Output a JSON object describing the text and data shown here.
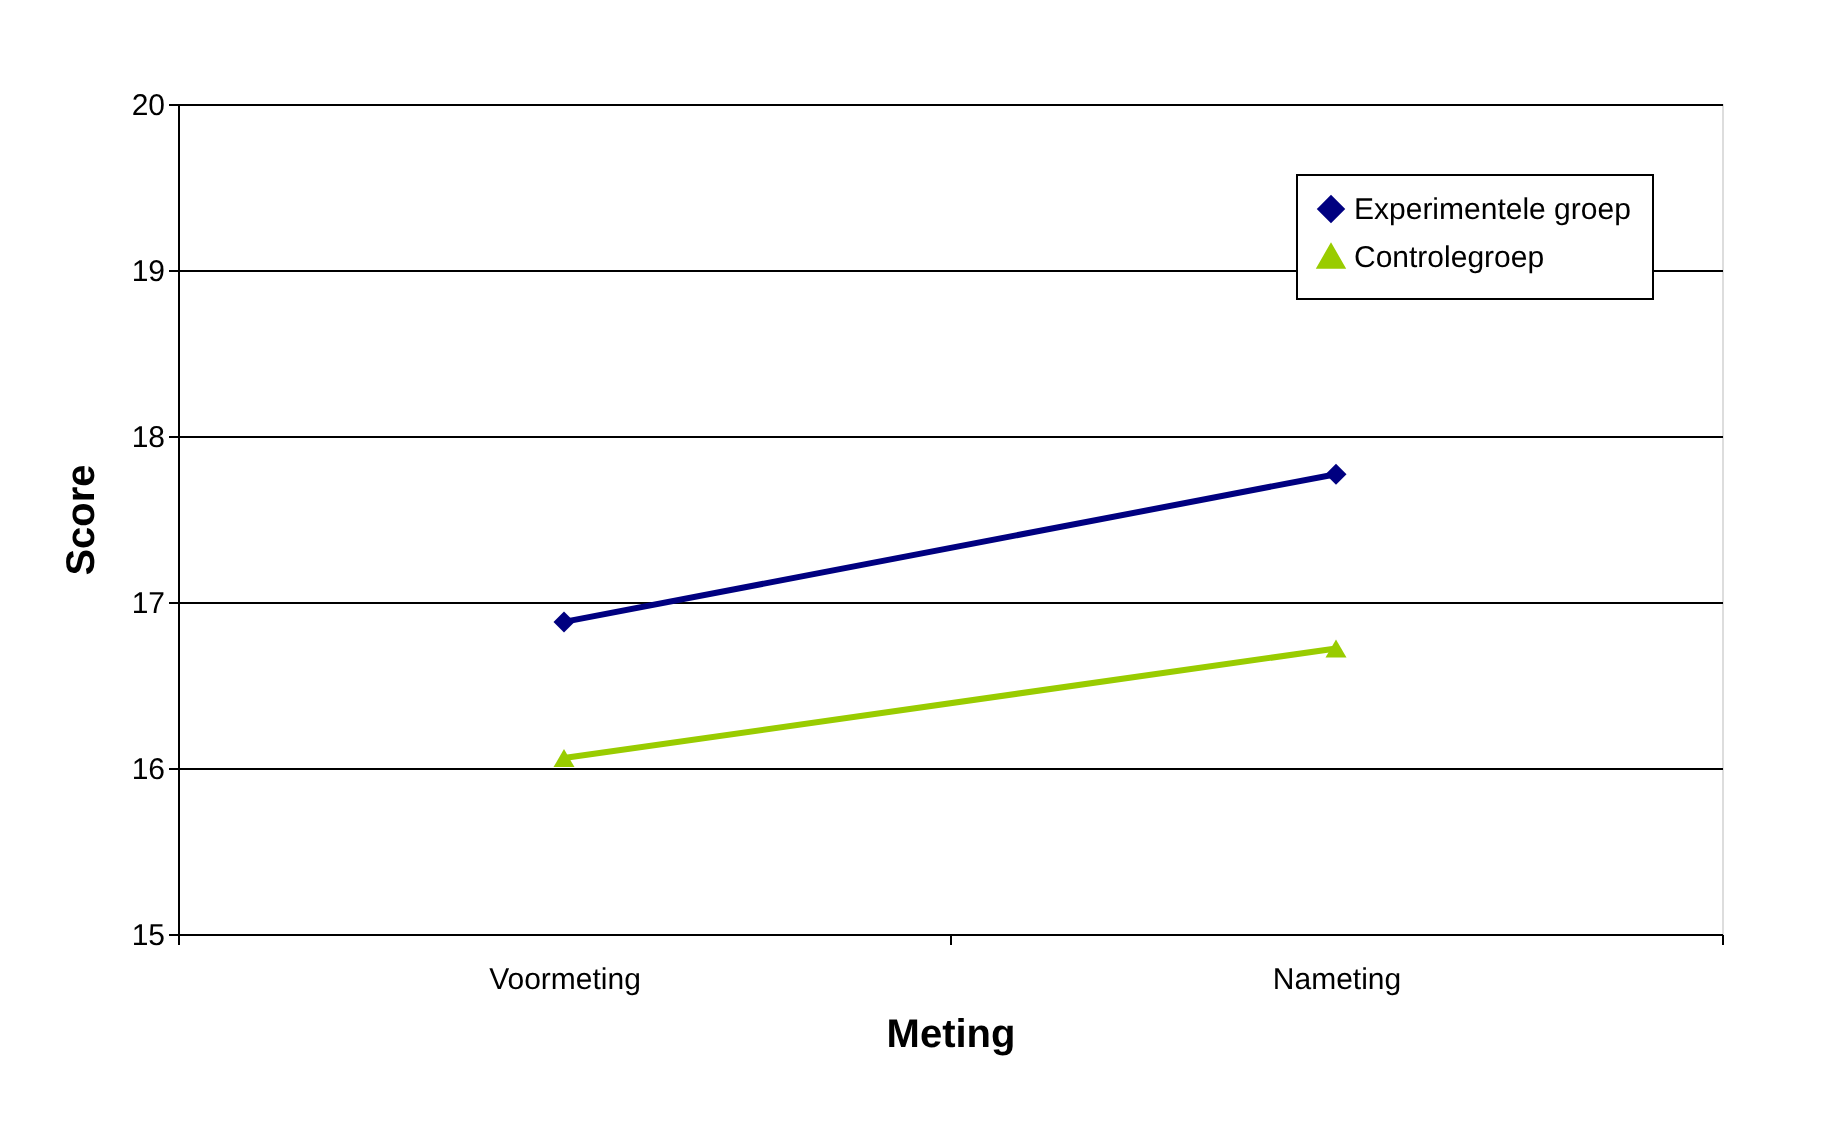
{
  "chart_data": {
    "type": "line",
    "xlabel": "Meting",
    "ylabel": "Score",
    "categories": [
      "Voormeting",
      "Nameting"
    ],
    "series": [
      {
        "name": "Experimentele groep",
        "color": "#000080",
        "marker": "diamond",
        "values": [
          16.88,
          17.77
        ]
      },
      {
        "name": "Controlegroep",
        "color": "#99cc00",
        "marker": "triangle",
        "values": [
          16.06,
          16.72
        ]
      }
    ],
    "ylim": [
      15,
      20
    ],
    "yticks": [
      15,
      16,
      17,
      18,
      19,
      20
    ],
    "grid": "y",
    "legend": "top right",
    "line_style": "solid"
  }
}
